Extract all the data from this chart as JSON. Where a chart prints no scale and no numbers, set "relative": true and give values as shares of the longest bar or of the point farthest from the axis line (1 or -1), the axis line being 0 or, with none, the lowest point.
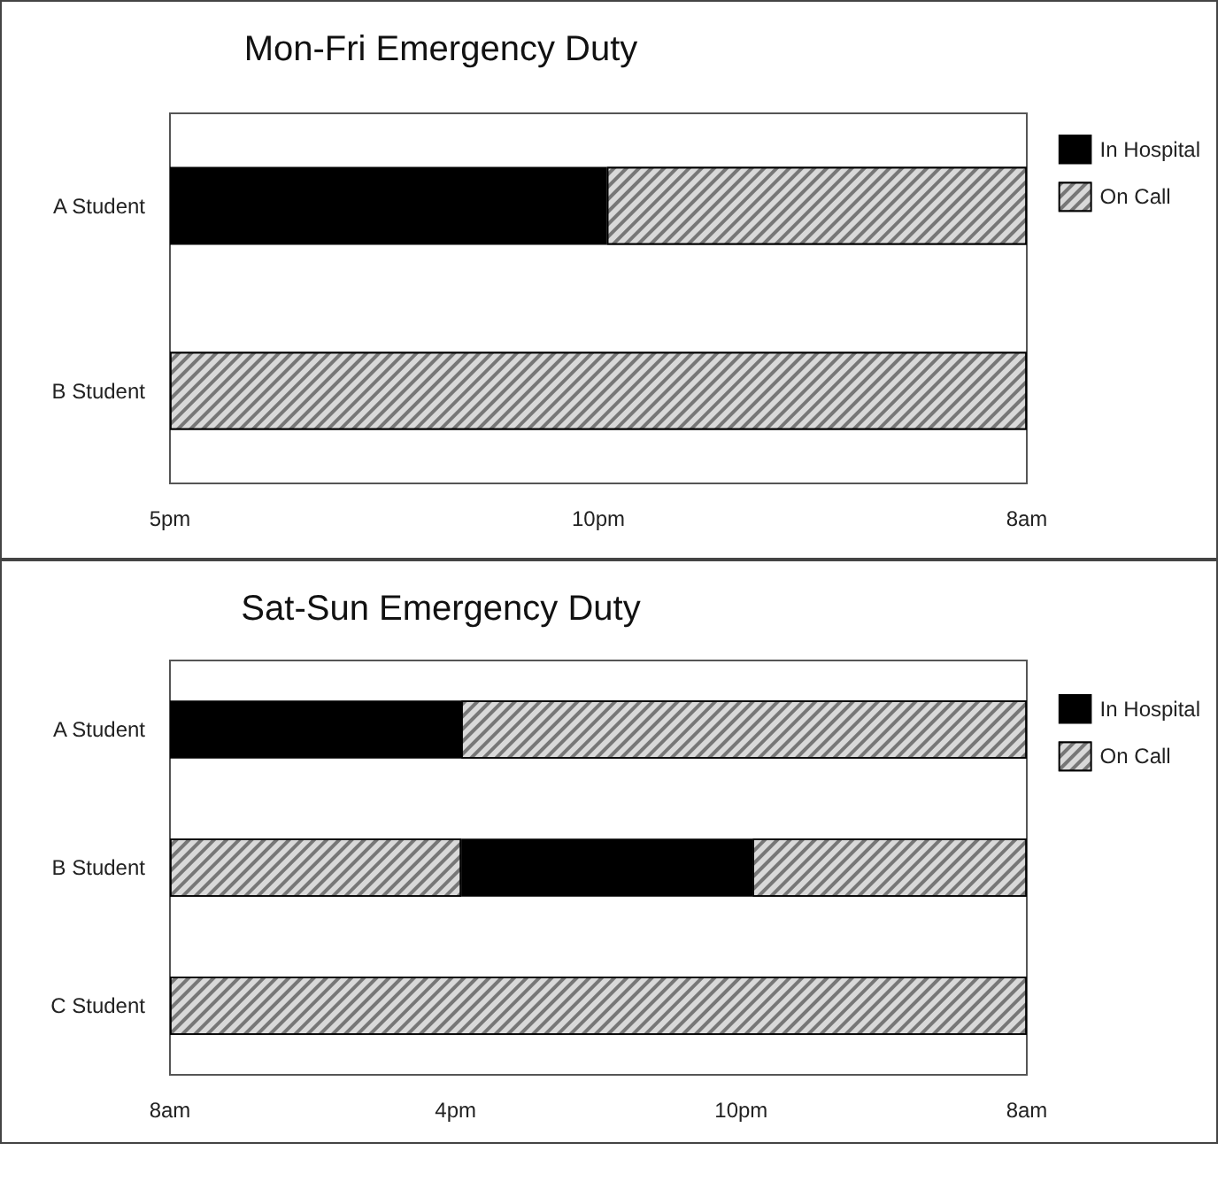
{
  "chart_data": [
    {
      "type": "bar",
      "title": "Mon-Fri Emergency Duty",
      "orientation": "horizontal",
      "stacked": true,
      "relative": true,
      "legend": "right",
      "categories": [
        "A Student",
        "B Student"
      ],
      "annotations": [
        "5pm",
        "10pm",
        "8am"
      ],
      "series": [
        {
          "name": "In Hospital",
          "color": "#000000",
          "values": [
            0.51,
            null
          ]
        },
        {
          "name": "On Call",
          "color": "#d9d9d9",
          "values": [
            0.49,
            1
          ]
        }
      ]
    },
    {
      "type": "bar",
      "title": "Sat-Sun Emergency Duty",
      "orientation": "horizontal",
      "stacked": true,
      "relative": true,
      "legend": "right",
      "categories": [
        "A Student",
        "B Student",
        "C Student"
      ],
      "annotations": [
        "8am",
        "4pm",
        "10pm",
        "8am"
      ],
      "series": [
        {
          "name": "In Hospital",
          "color": "#000000",
          "values": [
            0.34,
            null,
            null
          ]
        },
        {
          "name": "On Call",
          "color": "#d9d9d9",
          "values": [
            0.66,
            0.34,
            1
          ]
        },
        {
          "color": "#000000",
          "values": [
            null,
            0.34,
            null
          ]
        },
        {
          "color": "#d9d9d9",
          "values": [
            null,
            0.32,
            null
          ]
        }
      ]
    }
  ]
}
